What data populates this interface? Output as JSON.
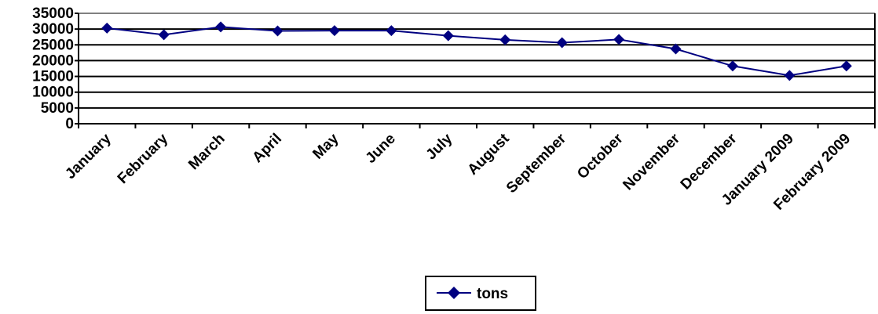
{
  "chart_data": {
    "type": "line",
    "categories": [
      "January",
      "February",
      "March",
      "April",
      "May",
      "June",
      "July",
      "August",
      "September",
      "October",
      "November",
      "December",
      "January 2009",
      "February 2009"
    ],
    "series": [
      {
        "name": "tons",
        "color": "#000080",
        "marker": "diamond",
        "values": [
          30300,
          28200,
          30700,
          29400,
          29500,
          29500,
          27900,
          26600,
          25700,
          26700,
          23700,
          18300,
          15300,
          18300
        ]
      }
    ],
    "yticks": [
      0,
      5000,
      10000,
      15000,
      20000,
      25000,
      30000,
      35000
    ],
    "ylim": [
      0,
      35000
    ],
    "grid": true,
    "legend_position": "bottom"
  }
}
